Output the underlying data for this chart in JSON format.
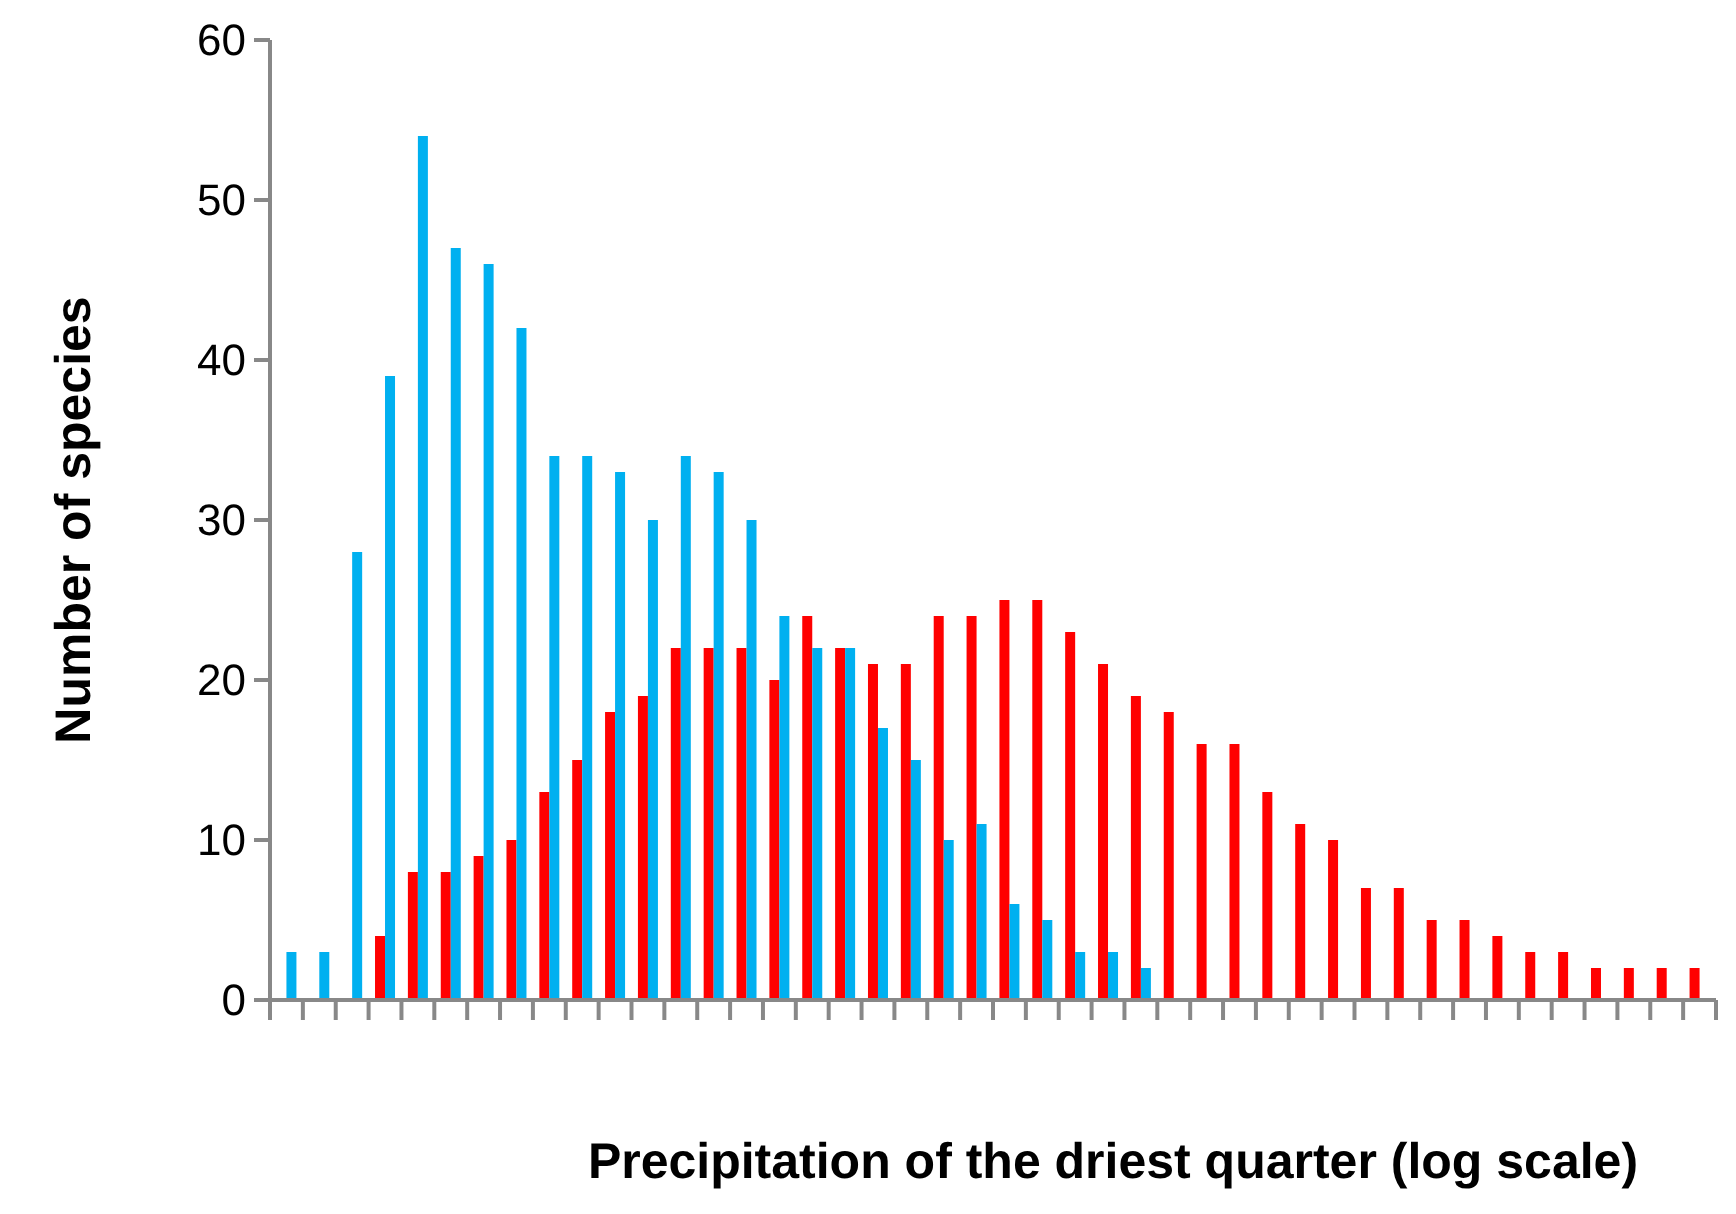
{
  "chart_data": {
    "type": "bar",
    "xlabel": "Precipitation of the driest quarter (log scale)",
    "ylabel": "Number of species",
    "categories": [
      null,
      null,
      null,
      null,
      null,
      null,
      null,
      null,
      null,
      null,
      null,
      null,
      null,
      null,
      null,
      null,
      null,
      null,
      null,
      null,
      null,
      null,
      null,
      null,
      null,
      null,
      null,
      null,
      null,
      null,
      null,
      null,
      null,
      null,
      null,
      null,
      null,
      null,
      null,
      null,
      null,
      null,
      null,
      null
    ],
    "series": [
      {
        "color": "#ff0000",
        "values": [
          0,
          0,
          0,
          4,
          8,
          8,
          9,
          10,
          13,
          15,
          18,
          19,
          22,
          22,
          22,
          20,
          24,
          22,
          21,
          21,
          24,
          24,
          25,
          25,
          23,
          21,
          19,
          18,
          16,
          16,
          13,
          11,
          10,
          7,
          7,
          5,
          5,
          4,
          3,
          3,
          2,
          2,
          2,
          2
        ]
      },
      {
        "color": "#00b0f0",
        "values": [
          3,
          3,
          28,
          39,
          54,
          47,
          46,
          42,
          34,
          34,
          33,
          30,
          34,
          33,
          30,
          24,
          22,
          22,
          17,
          15,
          10,
          11,
          6,
          5,
          3,
          3,
          2,
          0,
          0,
          0,
          0,
          0,
          0,
          0,
          0,
          0,
          0,
          0,
          0,
          0,
          0,
          0,
          0,
          0
        ]
      }
    ],
    "ylim": [
      0,
      60
    ],
    "yticks": [
      0,
      10,
      20,
      30,
      40,
      50,
      60
    ],
    "grid": false
  }
}
